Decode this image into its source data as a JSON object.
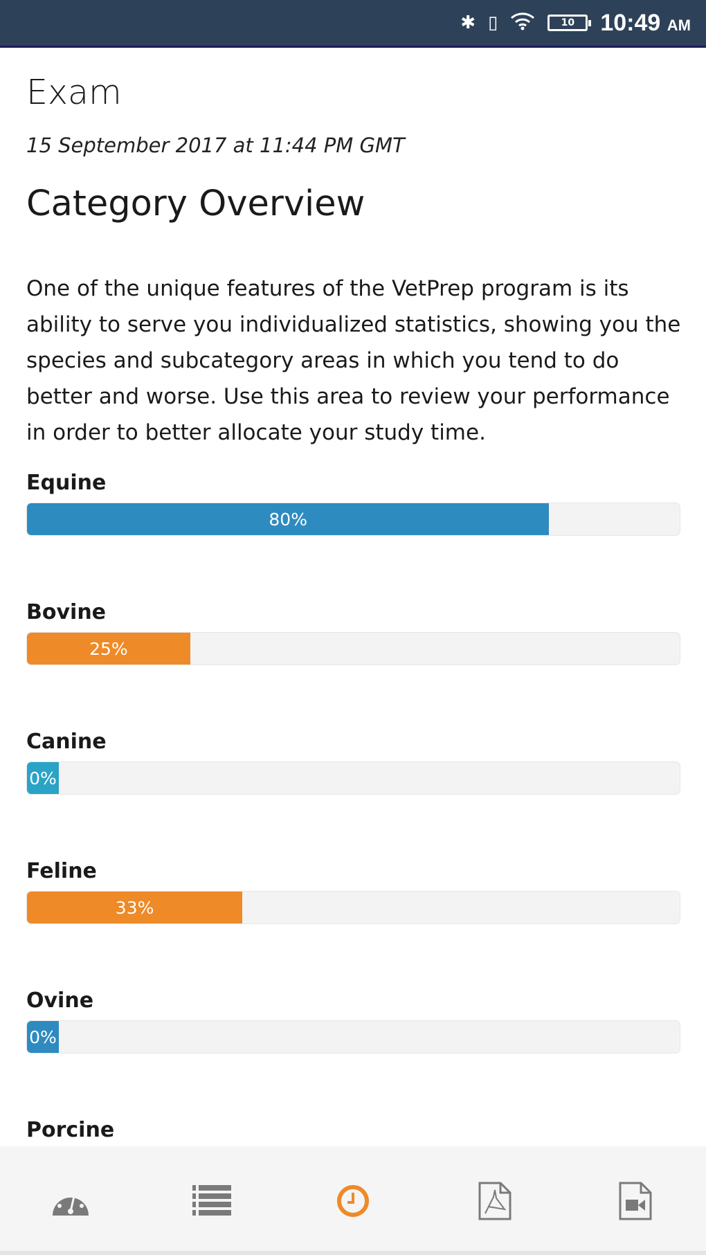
{
  "status_bar": {
    "time": "10:49",
    "ampm": "AM",
    "battery": "10",
    "icons": [
      "bluetooth-icon",
      "vibrate-icon",
      "wifi-icon",
      "battery-icon"
    ]
  },
  "header": {
    "title": "Exam",
    "date": "15 September 2017 at 11:44 PM GMT"
  },
  "section": {
    "title": "Category Overview",
    "description": "One of the unique features of the VetPrep program is its ability to serve you individualized statistics, showing you the species and subcategory areas in which you tend to do better and worse. Use this area to review your performance in order to better allocate your study time."
  },
  "categories": [
    {
      "name": "Equine",
      "percent": 80,
      "label": "80%",
      "color": "#2e8bc0"
    },
    {
      "name": "Bovine",
      "percent": 25,
      "label": "25%",
      "color": "#ee8a27"
    },
    {
      "name": "Canine",
      "percent": 0,
      "label": "0%",
      "color": "#2aa3c6"
    },
    {
      "name": "Feline",
      "percent": 33,
      "label": "33%",
      "color": "#ee8a27"
    },
    {
      "name": "Ovine",
      "percent": 0,
      "label": "0%",
      "color": "#2e8bc0"
    },
    {
      "name": "Porcine"
    }
  ],
  "bottom_nav": {
    "items": [
      "dashboard-icon",
      "list-icon",
      "history-icon",
      "pdf-icon",
      "video-icon"
    ],
    "active": 2,
    "active_color": "#ee8a27",
    "inactive_color": "#7a7a7a"
  }
}
